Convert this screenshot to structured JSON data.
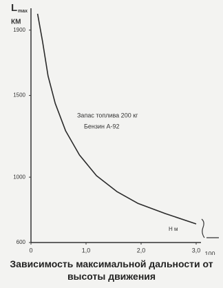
{
  "chart_data": {
    "type": "line",
    "title": "Зависимость максимальной дальности от высоты движения",
    "y_label": {
      "symbol": "L",
      "subscript": "max",
      "unit": "КМ"
    },
    "x_label": "Н м",
    "annotations": [
      "Запас топлива 200 кг",
      "Бензин А-92",
      "100"
    ],
    "x": [
      0.12,
      0.21,
      0.31,
      0.44,
      0.63,
      0.88,
      1.19,
      1.56,
      1.94,
      2.44,
      3.0
    ],
    "series": [
      {
        "name": "Lmax",
        "color": "#2a2a2a",
        "values": [
          2000,
          1831,
          1620,
          1452,
          1283,
          1136,
          1009,
          912,
          840,
          777,
          714
        ]
      }
    ],
    "xlim": [
      0,
      3.35
    ],
    "xticks": [
      0,
      {
        "value": 1.0,
        "label": "1,0"
      },
      {
        "value": 2.0,
        "label": "2,0"
      },
      {
        "value": 3.0,
        "label": "3,0"
      }
    ],
    "ylim": [
      600,
      2000
    ],
    "yticks": [
      600,
      1000,
      1500,
      1900
    ],
    "grid": false
  }
}
